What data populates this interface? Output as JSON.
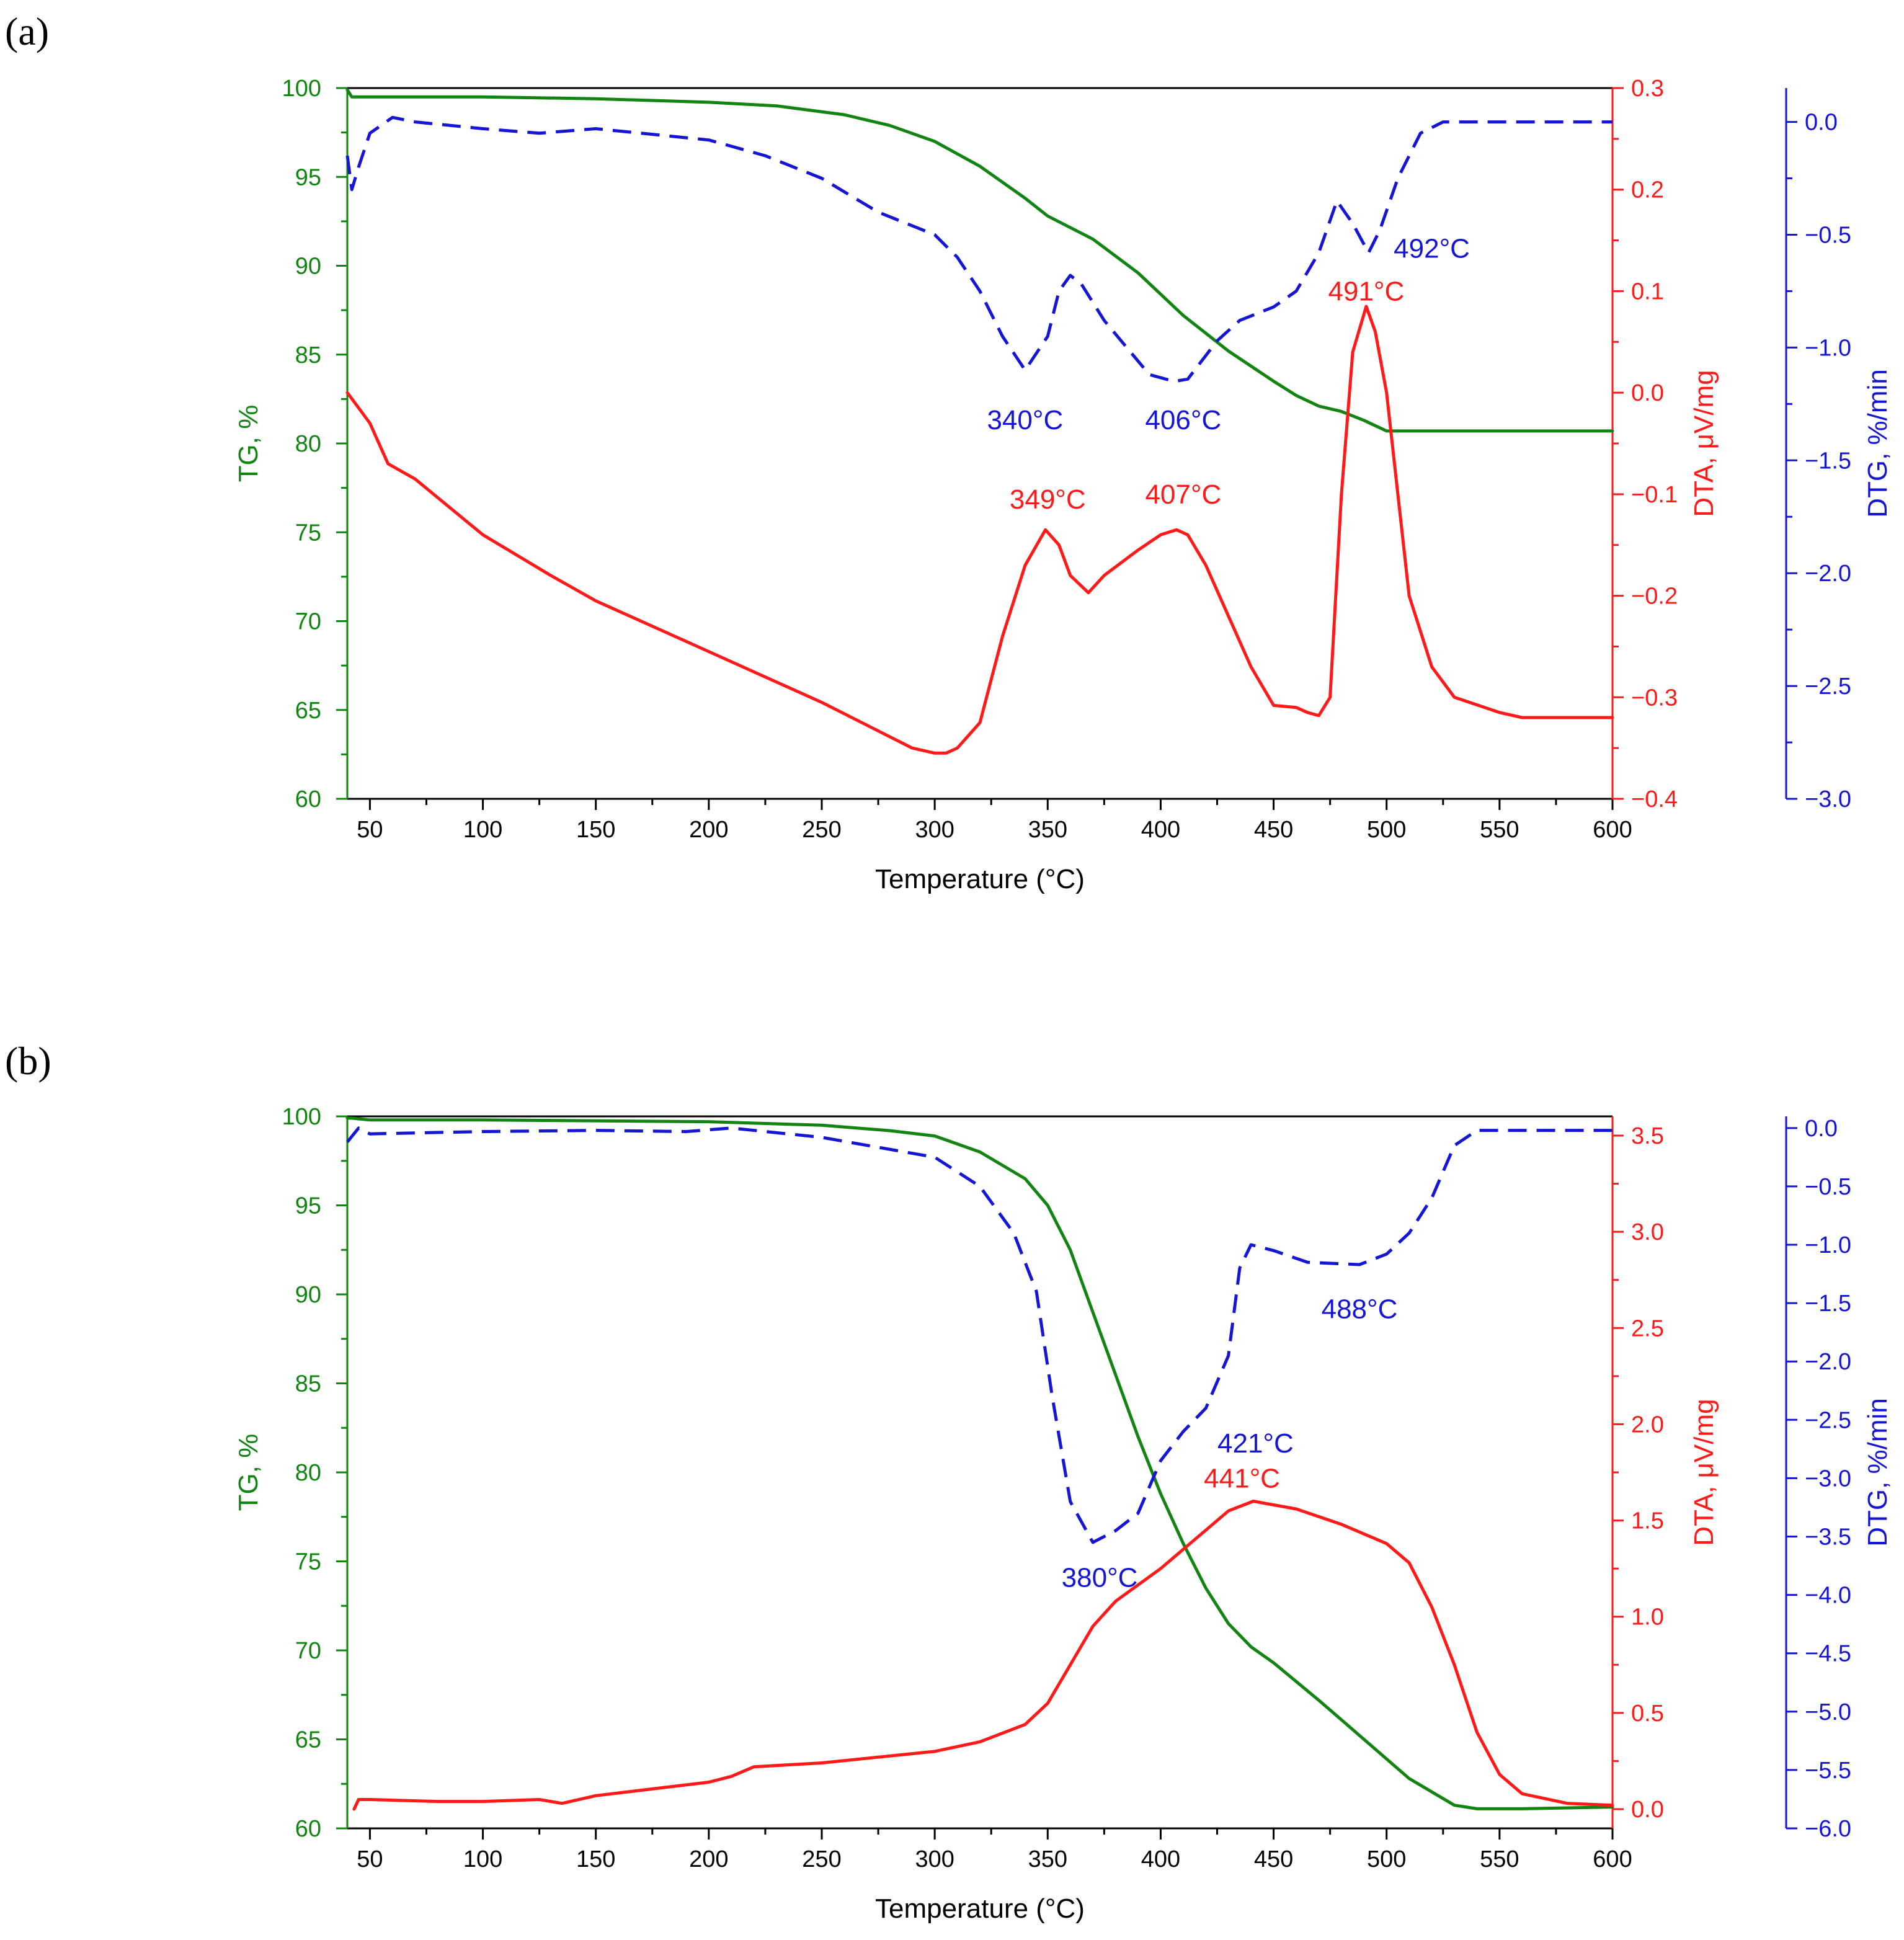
{
  "colors": {
    "tg": "#118411",
    "dta": "#ff1a1a",
    "dtg": "#1515d4",
    "frame": "#000000"
  },
  "chart_data": [
    {
      "panel": "(a)",
      "type": "line",
      "xlabel": "Temperature (°C)",
      "xlim": [
        40,
        600
      ],
      "xticks": [
        50,
        100,
        150,
        200,
        250,
        300,
        350,
        400,
        450,
        500,
        550,
        600
      ],
      "axes": {
        "tg": {
          "label": "TG, %",
          "range": [
            60,
            100
          ],
          "ticks": [
            60,
            65,
            70,
            75,
            80,
            85,
            90,
            95,
            100
          ],
          "tick_labels": [
            "60",
            "65",
            "70",
            "75",
            "80",
            "85",
            "90",
            "95",
            "100"
          ]
        },
        "dta": {
          "label": "DTA, μV/mg",
          "range": [
            -0.4,
            0.3
          ],
          "ticks": [
            -0.4,
            -0.3,
            -0.2,
            -0.1,
            0.0,
            0.1,
            0.2,
            0.3
          ],
          "tick_labels": [
            "−0.4",
            "−0.3",
            "−0.2",
            "−0.1",
            "0.0",
            "0.1",
            "0.2",
            "0.3"
          ]
        },
        "dtg": {
          "label": "DTG, %/min",
          "range": [
            -3.0,
            0.15
          ],
          "ticks": [
            -3.0,
            -2.5,
            -2.0,
            -1.5,
            -1.0,
            -0.5,
            0.0
          ],
          "tick_labels": [
            "−3.0",
            "−2.5",
            "−2.0",
            "−1.5",
            "−1.0",
            "−0.5",
            "0.0"
          ]
        }
      },
      "series": [
        {
          "name": "TG",
          "axis": "tg",
          "style": "solid",
          "x": [
            40,
            42,
            50,
            100,
            150,
            200,
            230,
            260,
            280,
            300,
            320,
            340,
            350,
            370,
            390,
            410,
            430,
            450,
            460,
            470,
            480,
            490,
            500,
            520,
            550,
            600
          ],
          "y": [
            99.9,
            99.5,
            99.5,
            99.5,
            99.4,
            99.2,
            99.0,
            98.5,
            97.9,
            97.0,
            95.6,
            93.8,
            92.8,
            91.5,
            89.6,
            87.2,
            85.2,
            83.5,
            82.7,
            82.1,
            81.8,
            81.3,
            80.7,
            80.7,
            80.7,
            80.7
          ]
        },
        {
          "name": "DTA",
          "axis": "dta",
          "style": "solid",
          "x": [
            40,
            50,
            58,
            70,
            100,
            130,
            150,
            200,
            250,
            290,
            300,
            305,
            310,
            320,
            330,
            340,
            349,
            355,
            360,
            368,
            375,
            390,
            400,
            407,
            412,
            420,
            430,
            440,
            450,
            460,
            465,
            470,
            475,
            480,
            485,
            491,
            495,
            500,
            505,
            510,
            520,
            530,
            550,
            560,
            600
          ],
          "y": [
            0.0,
            -0.03,
            -0.07,
            -0.085,
            -0.14,
            -0.18,
            -0.205,
            -0.255,
            -0.305,
            -0.35,
            -0.355,
            -0.355,
            -0.35,
            -0.325,
            -0.24,
            -0.17,
            -0.135,
            -0.15,
            -0.18,
            -0.197,
            -0.18,
            -0.155,
            -0.14,
            -0.135,
            -0.14,
            -0.17,
            -0.22,
            -0.27,
            -0.308,
            -0.31,
            -0.315,
            -0.318,
            -0.3,
            -0.1,
            0.04,
            0.085,
            0.06,
            0.0,
            -0.1,
            -0.2,
            -0.27,
            -0.3,
            -0.315,
            -0.32,
            -0.32
          ]
        },
        {
          "name": "DTG",
          "axis": "dtg",
          "style": "dashed",
          "x": [
            40,
            42,
            45,
            50,
            60,
            70,
            100,
            125,
            150,
            200,
            225,
            250,
            275,
            300,
            310,
            320,
            330,
            340,
            350,
            355,
            360,
            365,
            375,
            385,
            395,
            406,
            412,
            425,
            435,
            450,
            460,
            470,
            478,
            485,
            492,
            497,
            505,
            515,
            525,
            550,
            600
          ],
          "y": [
            -0.15,
            -0.3,
            -0.2,
            -0.05,
            0.02,
            0.0,
            -0.03,
            -0.05,
            -0.03,
            -0.08,
            -0.15,
            -0.25,
            -0.4,
            -0.5,
            -0.6,
            -0.75,
            -0.95,
            -1.1,
            -0.95,
            -0.75,
            -0.68,
            -0.72,
            -0.88,
            -1.0,
            -1.12,
            -1.15,
            -1.14,
            -0.97,
            -0.88,
            -0.82,
            -0.75,
            -0.58,
            -0.35,
            -0.45,
            -0.58,
            -0.48,
            -0.25,
            -0.05,
            0.0,
            0.0,
            0.0
          ]
        }
      ],
      "annotations": [
        {
          "text": "340°C",
          "axis": "dtg",
          "x": 340,
          "y": -1.32,
          "color": "dtg"
        },
        {
          "text": "406°C",
          "axis": "dtg",
          "x": 410,
          "y": -1.32,
          "color": "dtg"
        },
        {
          "text": "492°C",
          "axis": "dtg",
          "x": 520,
          "y": -0.56,
          "color": "dtg"
        },
        {
          "text": "349°C",
          "axis": "dta",
          "x": 350,
          "y": -0.105,
          "color": "dta"
        },
        {
          "text": "407°C",
          "axis": "dta",
          "x": 410,
          "y": -0.1,
          "color": "dta"
        },
        {
          "text": "491°C",
          "axis": "dta",
          "x": 491,
          "y": 0.1,
          "color": "dta"
        }
      ]
    },
    {
      "panel": "(b)",
      "type": "line",
      "xlabel": "Temperature (°C)",
      "xlim": [
        40,
        600
      ],
      "xticks": [
        50,
        100,
        150,
        200,
        250,
        300,
        350,
        400,
        450,
        500,
        550,
        600
      ],
      "axes": {
        "tg": {
          "label": "TG, %",
          "range": [
            60,
            100
          ],
          "ticks": [
            60,
            65,
            70,
            75,
            80,
            85,
            90,
            95,
            100
          ],
          "tick_labels": [
            "60",
            "65",
            "70",
            "75",
            "80",
            "85",
            "90",
            "95",
            "100"
          ]
        },
        "dta": {
          "label": "DTA, μV/mg",
          "range": [
            -0.1,
            3.6
          ],
          "ticks": [
            0.0,
            0.5,
            1.0,
            1.5,
            2.0,
            2.5,
            3.0,
            3.5
          ],
          "tick_labels": [
            "0.0",
            "0.5",
            "1.0",
            "1.5",
            "2.0",
            "2.5",
            "3.0",
            "3.5"
          ]
        },
        "dtg": {
          "label": "DTG, %/min",
          "range": [
            -6.0,
            0.1
          ],
          "ticks": [
            -6.0,
            -5.5,
            -5.0,
            -4.5,
            -4.0,
            -3.5,
            -3.0,
            -2.5,
            -2.0,
            -1.5,
            -1.0,
            -0.5,
            0.0
          ],
          "tick_labels": [
            "−6.0",
            "−5.5",
            "−5.0",
            "−4.5",
            "−4.0",
            "−3.5",
            "−3.0",
            "−2.5",
            "−2.0",
            "−1.5",
            "−1.0",
            "−0.5",
            "0.0"
          ]
        }
      },
      "series": [
        {
          "name": "TG",
          "axis": "tg",
          "style": "solid",
          "x": [
            40,
            42,
            50,
            100,
            200,
            250,
            280,
            300,
            320,
            340,
            350,
            360,
            370,
            380,
            390,
            400,
            410,
            420,
            430,
            440,
            450,
            470,
            490,
            510,
            530,
            540,
            560,
            600
          ],
          "y": [
            99.9,
            99.9,
            99.8,
            99.8,
            99.7,
            99.5,
            99.2,
            98.9,
            98.0,
            96.5,
            95.0,
            92.5,
            89.0,
            85.5,
            82.0,
            78.8,
            76.0,
            73.5,
            71.5,
            70.2,
            69.3,
            67.2,
            65.0,
            62.8,
            61.3,
            61.1,
            61.1,
            61.2
          ]
        },
        {
          "name": "DTA",
          "axis": "dta",
          "style": "solid",
          "x": [
            43,
            45,
            50,
            80,
            100,
            125,
            135,
            150,
            200,
            210,
            220,
            250,
            300,
            320,
            340,
            350,
            360,
            370,
            380,
            400,
            420,
            430,
            441,
            460,
            480,
            490,
            500,
            510,
            520,
            530,
            540,
            550,
            560,
            580,
            600
          ],
          "y": [
            0.0,
            0.05,
            0.05,
            0.04,
            0.04,
            0.05,
            0.03,
            0.07,
            0.14,
            0.17,
            0.22,
            0.24,
            0.3,
            0.35,
            0.44,
            0.55,
            0.75,
            0.95,
            1.08,
            1.25,
            1.45,
            1.55,
            1.6,
            1.56,
            1.48,
            1.43,
            1.38,
            1.28,
            1.05,
            0.75,
            0.4,
            0.18,
            0.08,
            0.03,
            0.02
          ]
        },
        {
          "name": "DTG",
          "axis": "dtg",
          "style": "dashed",
          "x": [
            40,
            45,
            50,
            100,
            150,
            190,
            210,
            250,
            300,
            320,
            335,
            345,
            352,
            360,
            370,
            380,
            390,
            400,
            410,
            420,
            430,
            435,
            440,
            450,
            465,
            488,
            500,
            510,
            520,
            530,
            540,
            600
          ],
          "y": [
            -0.12,
            0.0,
            -0.05,
            -0.03,
            -0.02,
            -0.03,
            0.0,
            -0.08,
            -0.25,
            -0.5,
            -0.9,
            -1.4,
            -2.3,
            -3.2,
            -3.55,
            -3.45,
            -3.3,
            -2.85,
            -2.6,
            -2.4,
            -1.95,
            -1.2,
            -1.0,
            -1.05,
            -1.15,
            -1.17,
            -1.08,
            -0.9,
            -0.6,
            -0.15,
            -0.02,
            -0.02
          ]
        }
      ],
      "annotations": [
        {
          "text": "380°C",
          "axis": "dtg",
          "x": 373,
          "y": -3.85,
          "color": "dtg"
        },
        {
          "text": "421°C",
          "axis": "dtg",
          "x": 442,
          "y": -2.7,
          "color": "dtg"
        },
        {
          "text": "488°C",
          "axis": "dtg",
          "x": 488,
          "y": -1.55,
          "color": "dtg"
        },
        {
          "text": "441°C",
          "axis": "dta",
          "x": 436,
          "y": 1.72,
          "color": "dta"
        }
      ]
    }
  ]
}
